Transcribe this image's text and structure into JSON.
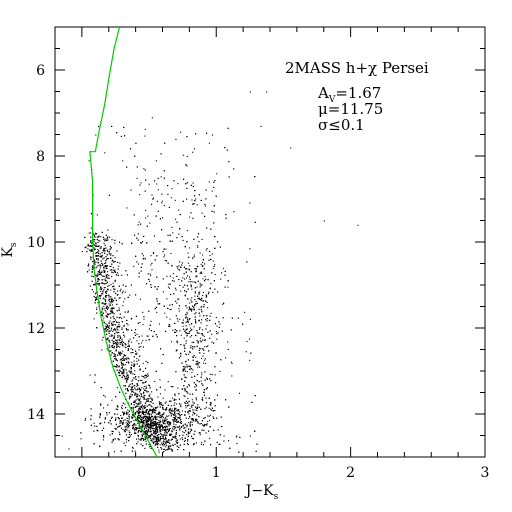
{
  "chart_data": {
    "type": "scatter",
    "title": "2MASS h+χ Persei",
    "xlabel": "J−K",
    "xlabel_sub": "s",
    "ylabel": "K",
    "ylabel_sub": "s",
    "xlim": [
      -0.2,
      3.0
    ],
    "ylim": [
      15.0,
      5.0
    ],
    "y_inverted": true,
    "grid": false,
    "x_ticks": [
      0,
      1,
      2,
      3
    ],
    "y_ticks": [
      6,
      8,
      10,
      12,
      14
    ],
    "annotations": [
      {
        "sym": "A",
        "sub": "V",
        "rest": "=1.67"
      },
      {
        "sym": "μ",
        "sub": "",
        "rest": "=11.75"
      },
      {
        "sym": "σ",
        "sub": "",
        "rest": "≤0.1"
      }
    ],
    "series": [
      {
        "type": "scatter",
        "color": "#000000",
        "description_of_density": [
          {
            "x_center": 0.5,
            "y_center": 14.1,
            "weight": 0.3
          },
          {
            "x_center": 0.33,
            "y_center": 13.3,
            "weight": 0.18
          },
          {
            "x_center": 0.18,
            "y_center": 12.2,
            "weight": 0.12
          },
          {
            "x_center": 0.75,
            "y_center": 13.4,
            "weight": 0.12
          },
          {
            "x_center": 0.85,
            "y_center": 11.5,
            "weight": 0.1
          },
          {
            "x_center": 0.08,
            "y_center": 10.6,
            "weight": 0.08
          },
          {
            "x_center": 0.6,
            "y_center": 10.0,
            "weight": 0.1
          }
        ],
        "points": [
          [
            0.05,
            8.1
          ],
          [
            0.07,
            8.3
          ],
          [
            0.1,
            7.5
          ],
          [
            0.12,
            7.3
          ],
          [
            0.08,
            8.9
          ],
          [
            0.3,
            8.1
          ],
          [
            0.55,
            8.1
          ],
          [
            0.78,
            8.0
          ],
          [
            0.82,
            7.9
          ],
          [
            1.33,
            7.3
          ],
          [
            1.37,
            6.5
          ],
          [
            1.25,
            6.5
          ],
          [
            0.52,
            7.1
          ],
          [
            1.55,
            7.8
          ],
          [
            1.0,
            8.4
          ],
          [
            1.8,
            9.5
          ],
          [
            2.05,
            9.6
          ],
          [
            -0.15,
            14.5
          ],
          [
            -0.1,
            14.8
          ],
          [
            1.15,
            14.5
          ],
          [
            1.25,
            14.5
          ],
          [
            0.95,
            10.3
          ],
          [
            1.05,
            10.6
          ]
        ]
      },
      {
        "type": "line",
        "color": "#00cc00",
        "points": [
          [
            0.28,
            5.0
          ],
          [
            0.24,
            5.5
          ],
          [
            0.2,
            6.2
          ],
          [
            0.17,
            6.8
          ],
          [
            0.13,
            7.4
          ],
          [
            0.1,
            7.9
          ],
          [
            0.06,
            7.9
          ],
          [
            0.08,
            8.6
          ],
          [
            0.08,
            9.3
          ],
          [
            0.08,
            10.0
          ],
          [
            0.09,
            10.6
          ],
          [
            0.11,
            11.1
          ],
          [
            0.14,
            11.7
          ],
          [
            0.18,
            12.3
          ],
          [
            0.23,
            12.9
          ],
          [
            0.29,
            13.4
          ],
          [
            0.35,
            13.8
          ],
          [
            0.42,
            14.2
          ],
          [
            0.49,
            14.6
          ],
          [
            0.56,
            15.0
          ]
        ]
      }
    ]
  }
}
